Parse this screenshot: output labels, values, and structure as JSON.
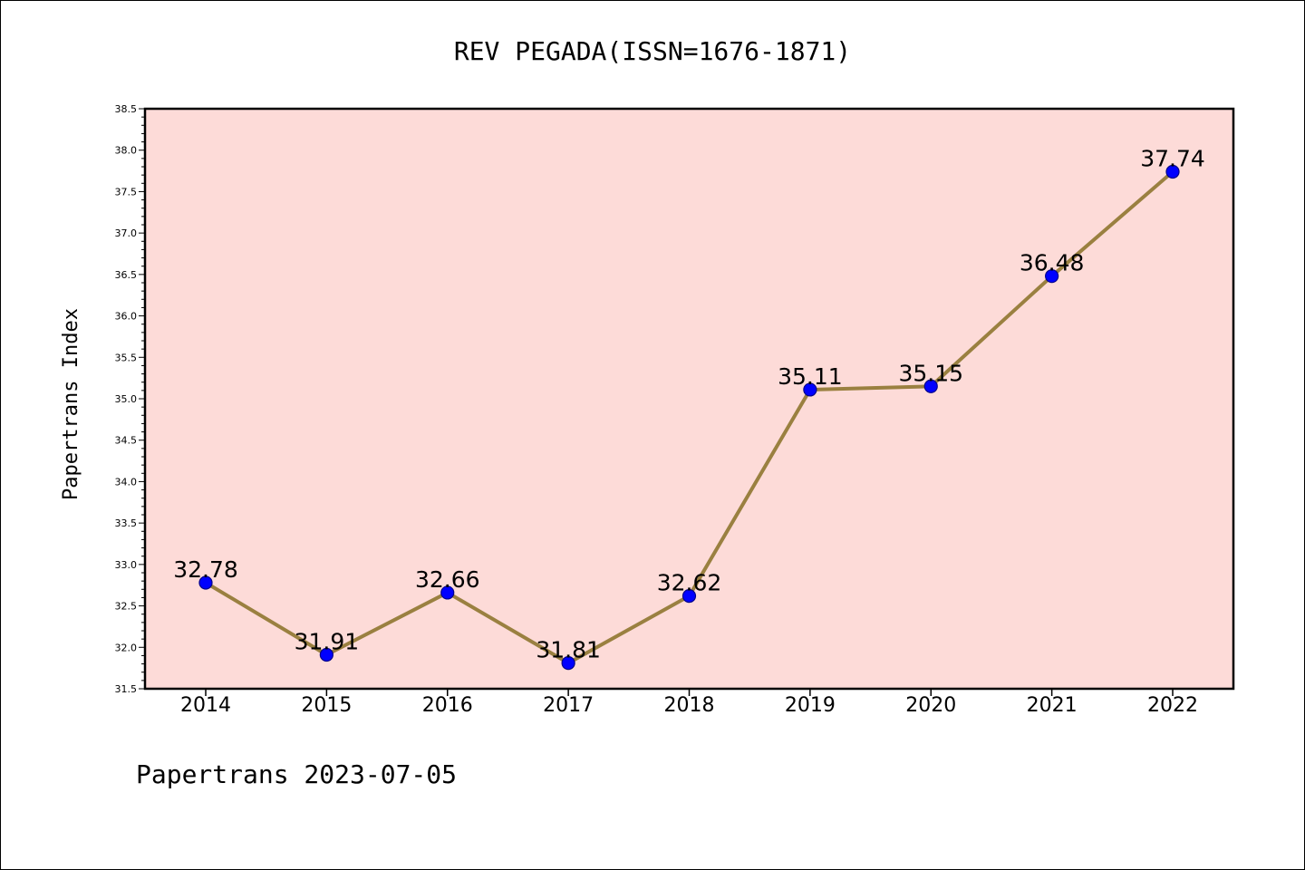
{
  "chart_data": {
    "type": "line",
    "title": "REV PEGADA(ISSN=1676-1871)",
    "xlabel": "",
    "ylabel": "Papertrans Index",
    "categories": [
      "2014",
      "2015",
      "2016",
      "2017",
      "2018",
      "2019",
      "2020",
      "2021",
      "2022"
    ],
    "series": [
      {
        "values": [
          32.78,
          31.91,
          32.66,
          31.81,
          32.62,
          35.11,
          35.15,
          36.48,
          37.74
        ],
        "labels": [
          "32.78",
          "31.91",
          "32.66",
          "31.81",
          "32.62",
          "35.11",
          "35.15",
          "36.48",
          "37.74"
        ]
      }
    ],
    "ylim": [
      31.5,
      38.5
    ],
    "yticks": [
      "31.5",
      "32.0",
      "32.5",
      "33.0",
      "33.5",
      "34.0",
      "34.5",
      "35.0",
      "35.5",
      "36.0",
      "36.5",
      "37.0",
      "37.5",
      "38.0",
      "38.5"
    ],
    "grid": false,
    "colors": {
      "plot_background": "#fddbd8",
      "line": "#9a8040",
      "marker": "#0000ff",
      "marker_edge": "#00008b"
    }
  },
  "footer": "Papertrans 2023-07-05"
}
